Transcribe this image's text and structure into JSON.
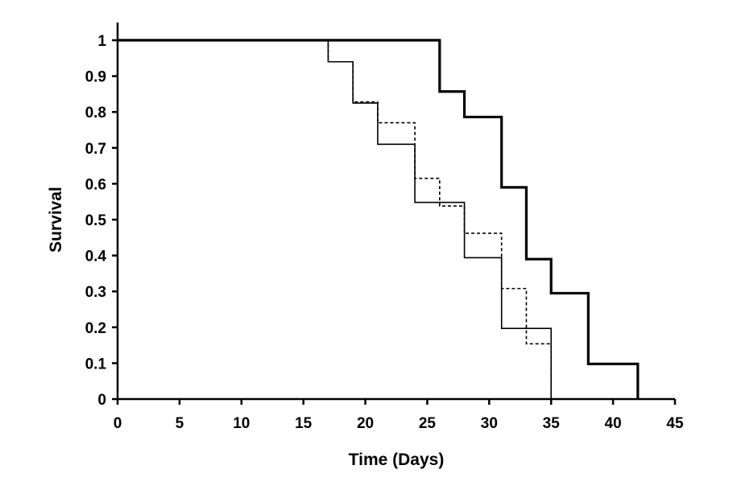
{
  "chart_data": {
    "type": "line",
    "step": true,
    "title": "",
    "xlabel": "Time (Days)",
    "ylabel": "Survival",
    "xlim": [
      0,
      45
    ],
    "ylim": [
      0,
      1
    ],
    "xticks": [
      0,
      5,
      10,
      15,
      20,
      25,
      30,
      35,
      40,
      45
    ],
    "xtick_labels": [
      "0",
      "5",
      "10",
      "15",
      "20",
      "25",
      "30",
      "35",
      "40",
      "45"
    ],
    "yticks": [
      0,
      0.1,
      0.2,
      0.3,
      0.4,
      0.5,
      0.6,
      0.7,
      0.8,
      0.9,
      1
    ],
    "ytick_labels": [
      "0",
      "0.1",
      "0.2",
      "0.3",
      "0.4",
      "0.5",
      "0.6",
      "0.7",
      "0.8",
      "0.9",
      "1"
    ],
    "grid": false,
    "legend": false,
    "series": [
      {
        "style": "thick-solid",
        "color": "#000000",
        "x": [
          0,
          26,
          28,
          31,
          33,
          35,
          38,
          42
        ],
        "y": [
          1,
          0.857,
          0.786,
          0.59,
          0.39,
          0.295,
          0.098,
          0
        ]
      },
      {
        "style": "thin-solid",
        "color": "#000000",
        "x": [
          0,
          17,
          19,
          21,
          24,
          28,
          31,
          35
        ],
        "y": [
          1,
          0.94,
          0.825,
          0.71,
          0.548,
          0.394,
          0.197,
          0
        ]
      },
      {
        "style": "dotted",
        "color": "#000000",
        "x": [
          0,
          17,
          19,
          21,
          24,
          26,
          28,
          31,
          33,
          35
        ],
        "y": [
          1,
          0.94,
          0.828,
          0.77,
          0.615,
          0.538,
          0.462,
          0.308,
          0.154,
          0
        ]
      }
    ]
  }
}
